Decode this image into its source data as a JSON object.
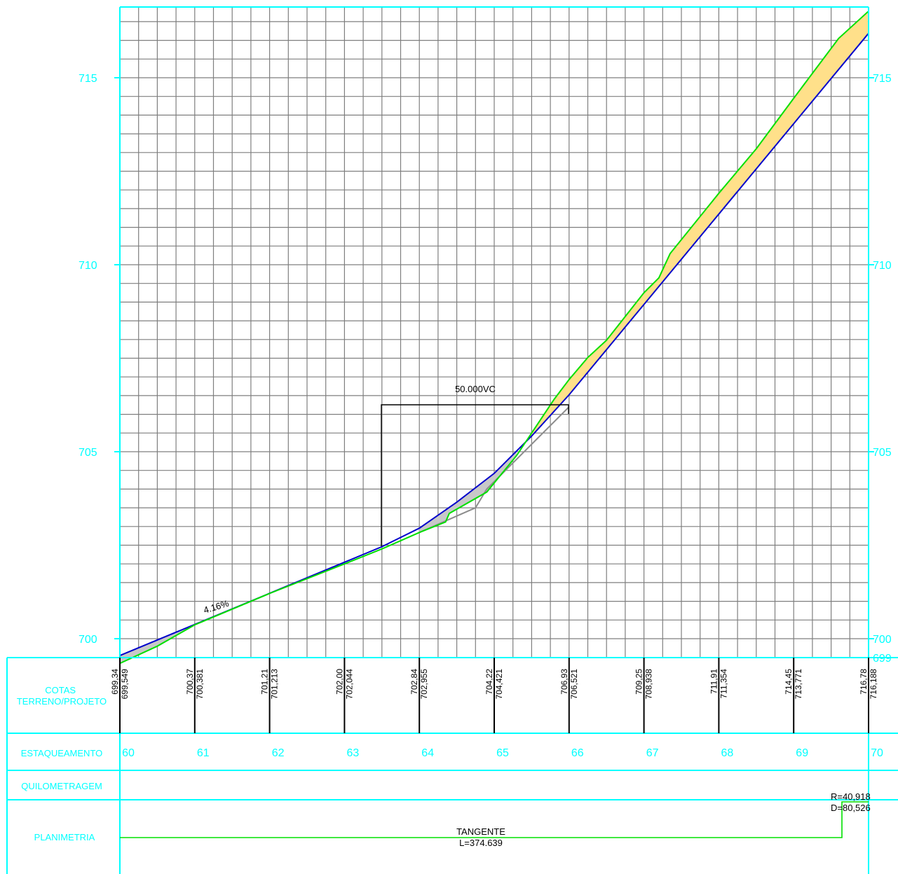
{
  "colors": {
    "frame": "#00ffff",
    "grid": "#7f7f7f",
    "terrain": "#00e000",
    "project": "#0000cc",
    "existing": "#8c8c8c",
    "fill": "#ffe08a",
    "cut": "#c8c8c8",
    "text": "#000000"
  },
  "axis": {
    "y_ticks": [
      "715",
      "710",
      "705",
      "700"
    ],
    "y_bottom": "699"
  },
  "rows": {
    "cotas": "COTAS\nTERRENO/PROJETO",
    "estaqueamento": "ESTAQUEAMENTO",
    "quilometragem": "QUILOMETRAGEM",
    "planimetria": "PLANIMETRIA"
  },
  "stations": [
    {
      "label": "60",
      "terreno": "699,34",
      "projeto": "699,549"
    },
    {
      "label": "61",
      "terreno": "700,37",
      "projeto": "700,381"
    },
    {
      "label": "62",
      "terreno": "701,21",
      "projeto": "701,213"
    },
    {
      "label": "63",
      "terreno": "702,00",
      "projeto": "702,044"
    },
    {
      "label": "64",
      "terreno": "702,84",
      "projeto": "702,955"
    },
    {
      "label": "65",
      "terreno": "704,22",
      "projeto": "704,421"
    },
    {
      "label": "66",
      "terreno": "706,93",
      "projeto": "706,521"
    },
    {
      "label": "67",
      "terreno": "709,25",
      "projeto": "708,938"
    },
    {
      "label": "68",
      "terreno": "711,91",
      "projeto": "711,354"
    },
    {
      "label": "69",
      "terreno": "714,45",
      "projeto": "713,771"
    },
    {
      "label": "70",
      "terreno": "716,78",
      "projeto": "716,188"
    }
  ],
  "annotations": {
    "grade": "4.16%",
    "vertical_curve": "50.000VC",
    "tangent": "TANGENTE",
    "tangent_length": "L=374.639",
    "curve_radius": "R=40,918",
    "curve_development": "D=80,526"
  },
  "profile": {
    "terrain": [
      [
        60,
        699.34
      ],
      [
        60.5,
        699.8
      ],
      [
        61,
        700.37
      ],
      [
        62,
        701.21
      ],
      [
        63,
        702.0
      ],
      [
        63.5,
        702.4
      ],
      [
        64,
        702.84
      ],
      [
        64.35,
        703.12
      ],
      [
        64.4,
        703.35
      ],
      [
        64.9,
        703.92
      ],
      [
        65.3,
        704.9
      ],
      [
        65.8,
        706.4
      ],
      [
        66,
        706.93
      ],
      [
        66.25,
        707.52
      ],
      [
        66.5,
        707.98
      ],
      [
        67,
        709.25
      ],
      [
        67.2,
        709.65
      ],
      [
        67.35,
        710.3
      ],
      [
        68,
        711.91
      ],
      [
        68.5,
        713.1
      ],
      [
        69,
        714.45
      ],
      [
        69.6,
        716.05
      ],
      [
        70,
        716.78
      ]
    ],
    "project": [
      [
        60,
        699.549
      ],
      [
        61,
        700.381
      ],
      [
        62,
        701.213
      ],
      [
        63,
        702.044
      ],
      [
        63.5,
        702.46
      ],
      [
        64,
        702.955
      ],
      [
        64.5,
        703.65
      ],
      [
        65,
        704.421
      ],
      [
        65.5,
        705.42
      ],
      [
        66,
        706.521
      ],
      [
        67,
        708.938
      ],
      [
        68,
        711.354
      ],
      [
        69,
        713.771
      ],
      [
        70,
        716.188
      ]
    ],
    "existing": [
      [
        64,
        702.84
      ],
      [
        64.75,
        703.5
      ],
      [
        64.9,
        704.0
      ],
      [
        66,
        706.2
      ]
    ]
  }
}
